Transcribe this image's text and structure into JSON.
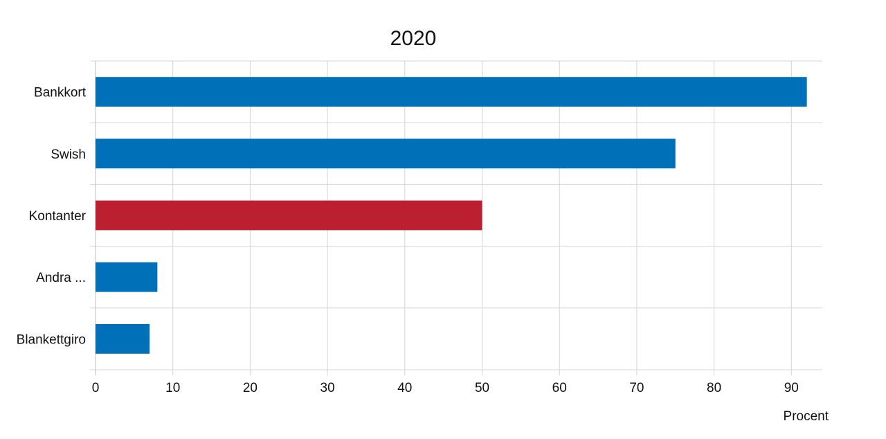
{
  "chart_data": {
    "type": "bar",
    "orientation": "horizontal",
    "title": "2020",
    "xlabel": "Procent",
    "ylabel": "",
    "categories": [
      "Bankkort",
      "Swish",
      "Kontanter",
      "Andra ...",
      "Blankettgiro"
    ],
    "values": [
      92,
      75,
      50,
      8,
      7
    ],
    "bar_colors": [
      "#0070b8",
      "#0070b8",
      "#bc1f30",
      "#0070b8",
      "#0070b8"
    ],
    "xlim": [
      0,
      94
    ],
    "x_ticks": [
      0,
      10,
      20,
      30,
      40,
      50,
      60,
      70,
      80,
      90
    ],
    "grid": true,
    "legend": "none"
  }
}
